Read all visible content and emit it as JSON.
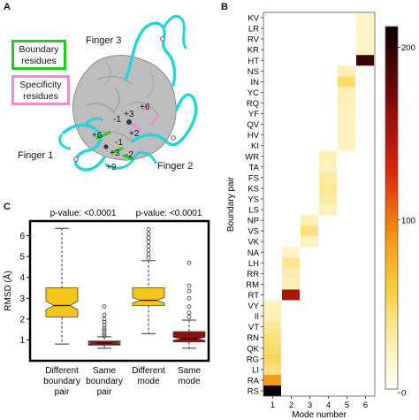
{
  "panels": {
    "a_letter": "A",
    "b_letter": "B",
    "c_letter": "C"
  },
  "panel_a": {
    "legend": {
      "boundary": "Boundary residues",
      "specificity": "Specificity residues",
      "boundary_color": "#22cc22",
      "specificity_color": "#e88fd0"
    },
    "labels": {
      "finger1": "Finger 1",
      "finger2": "Finger 2",
      "finger3": "Finger 3"
    },
    "positions": [
      "+6",
      "+3",
      "-1",
      "+2",
      "+6",
      "-1",
      "+3",
      "-2",
      "+9"
    ]
  },
  "panel_c": {
    "chart_data": {
      "type": "box",
      "ylabel": "RMSD (Å)",
      "ylim": [
        0,
        6.7
      ],
      "yticks": [
        "1",
        "2",
        "3",
        "4",
        "5",
        "6"
      ],
      "annotations": [
        "p-value: <0.0001",
        "p-value: <0.0001"
      ],
      "categories": [
        "Different boundary pair",
        "Same boundary pair",
        "Different mode",
        "Same mode"
      ],
      "category_lines": [
        [
          "Different",
          "boundary",
          "pair"
        ],
        [
          "Same",
          "boundary",
          "pair"
        ],
        [
          "Different",
          "mode"
        ],
        [
          "Same",
          "mode"
        ]
      ],
      "colors": [
        "#f5c518",
        "#8b1010",
        "#f5c518",
        "#8b1010"
      ],
      "boxes": [
        {
          "min": 0.8,
          "q1": 2.1,
          "median": 2.65,
          "q3": 3.5,
          "max": 6.35,
          "outliers": []
        },
        {
          "min": 0.6,
          "q1": 0.75,
          "median": 0.85,
          "q3": 0.95,
          "max": 1.15,
          "outliers": [
            1.2,
            1.3,
            1.45,
            1.55,
            1.7,
            1.85,
            2.0,
            2.2,
            2.6
          ]
        },
        {
          "min": 1.3,
          "q1": 2.65,
          "median": 2.9,
          "q3": 3.5,
          "max": 4.8,
          "outliers": [
            4.95,
            5.1,
            5.3,
            5.5,
            5.7,
            5.9,
            6.1,
            6.3
          ]
        },
        {
          "min": 0.6,
          "q1": 0.9,
          "median": 1.05,
          "q3": 1.4,
          "max": 1.95,
          "outliers": [
            2.1,
            2.3,
            2.6,
            3.0,
            3.35,
            3.6,
            4.7
          ]
        }
      ]
    }
  },
  "panel_b": {
    "chart_data": {
      "type": "heatmap",
      "ylabel": "Boundary pair",
      "xlabel": "Mode number",
      "x": [
        "1",
        "2",
        "3",
        "4",
        "5",
        "6"
      ],
      "y": [
        "KV",
        "LR",
        "RV",
        "KR",
        "HT",
        "NS",
        "IN",
        "YC",
        "RQ",
        "YF",
        "QV",
        "HV",
        "KI",
        "WR",
        "TA",
        "FS",
        "KS",
        "YS",
        "LS",
        "NP",
        "VS",
        "VK",
        "NA",
        "LH",
        "RR",
        "RM",
        "RT",
        "VY",
        "II",
        "VT",
        "RN",
        "QK",
        "RG",
        "LI",
        "RA",
        "RS"
      ],
      "colorbar": {
        "ticks": [
          "0",
          "100",
          "200"
        ],
        "range": [
          0,
          210
        ]
      },
      "cells": [
        {
          "row": "KV",
          "col": "6",
          "value": 18
        },
        {
          "row": "LR",
          "col": "6",
          "value": 18
        },
        {
          "row": "RV",
          "col": "6",
          "value": 18
        },
        {
          "row": "KR",
          "col": "6",
          "value": 18
        },
        {
          "row": "HT",
          "col": "6",
          "value": 195
        },
        {
          "row": "NS",
          "col": "5",
          "value": 25
        },
        {
          "row": "IN",
          "col": "5",
          "value": 45
        },
        {
          "row": "YC",
          "col": "5",
          "value": 25
        },
        {
          "row": "RQ",
          "col": "5",
          "value": 25
        },
        {
          "row": "YF",
          "col": "5",
          "value": 20
        },
        {
          "row": "QV",
          "col": "5",
          "value": 20
        },
        {
          "row": "HV",
          "col": "5",
          "value": 20
        },
        {
          "row": "KI",
          "col": "5",
          "value": 20
        },
        {
          "row": "WR",
          "col": "4",
          "value": 25
        },
        {
          "row": "TA",
          "col": "4",
          "value": 22
        },
        {
          "row": "FS",
          "col": "4",
          "value": 30
        },
        {
          "row": "KS",
          "col": "4",
          "value": 35
        },
        {
          "row": "YS",
          "col": "4",
          "value": 30
        },
        {
          "row": "LS",
          "col": "4",
          "value": 22
        },
        {
          "row": "NP",
          "col": "3",
          "value": 25
        },
        {
          "row": "VS",
          "col": "3",
          "value": 40
        },
        {
          "row": "VK",
          "col": "3",
          "value": 22
        },
        {
          "row": "NA",
          "col": "2",
          "value": 18
        },
        {
          "row": "LH",
          "col": "2",
          "value": 35
        },
        {
          "row": "RR",
          "col": "2",
          "value": 28
        },
        {
          "row": "RM",
          "col": "2",
          "value": 25
        },
        {
          "row": "RT",
          "col": "2",
          "value": 150
        },
        {
          "row": "VY",
          "col": "1",
          "value": 22
        },
        {
          "row": "II",
          "col": "1",
          "value": 25
        },
        {
          "row": "VT",
          "col": "1",
          "value": 35
        },
        {
          "row": "RN",
          "col": "1",
          "value": 40
        },
        {
          "row": "QK",
          "col": "1",
          "value": 45
        },
        {
          "row": "RG",
          "col": "1",
          "value": 50
        },
        {
          "row": "LI",
          "col": "1",
          "value": 40
        },
        {
          "row": "RA",
          "col": "1",
          "value": 85
        },
        {
          "row": "RS",
          "col": "1",
          "value": 210
        }
      ]
    }
  }
}
